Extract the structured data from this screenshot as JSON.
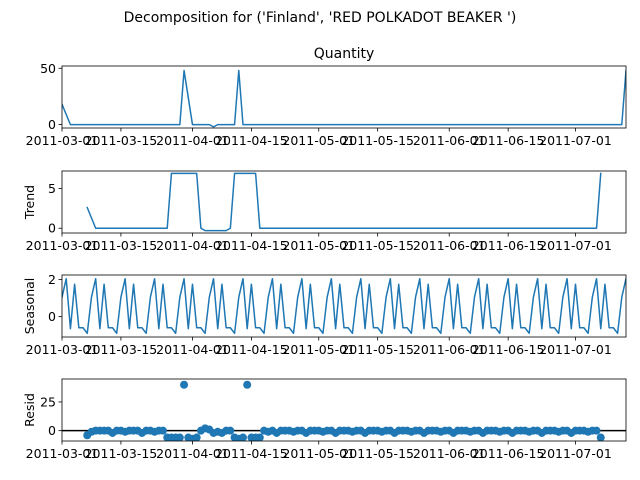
{
  "figure": {
    "suptitle": "Decomposition for ('Finland', 'RED POLKADOT BEAKER ')"
  },
  "chart_data": [
    {
      "type": "line",
      "panel": "observed",
      "title": "Quantity",
      "ylabel": "",
      "ylim": [
        -3,
        52
      ],
      "yticks": [
        0,
        50
      ],
      "xlim": [
        "2011-03-01",
        "2011-07-13"
      ],
      "xticks": [
        "2011-03-01",
        "2011-03-15",
        "2011-04-01",
        "2011-04-15",
        "2011-05-01",
        "2011-05-15",
        "2011-06-01",
        "2011-06-15",
        "2011-07-01"
      ],
      "series": [
        {
          "x": [
            "2011-03-01",
            "2011-03-03",
            "2011-03-29",
            "2011-03-30",
            "2011-04-01",
            "2011-04-02",
            "2011-04-03",
            "2011-04-04",
            "2011-04-05",
            "2011-04-06",
            "2011-04-07",
            "2011-04-08",
            "2011-04-09",
            "2011-04-10",
            "2011-04-11",
            "2011-04-12",
            "2011-04-13",
            "2011-07-12",
            "2011-07-13"
          ],
          "y": [
            18,
            0,
            0,
            48,
            0,
            0,
            0,
            0,
            0,
            -2,
            0,
            0,
            0,
            0,
            0,
            48,
            0,
            0,
            48
          ]
        }
      ]
    },
    {
      "type": "line",
      "panel": "trend",
      "title": "",
      "ylabel": "Trend",
      "ylim": [
        -0.6,
        7.2
      ],
      "yticks": [
        0,
        5
      ],
      "xlim": [
        "2011-03-01",
        "2011-07-13"
      ],
      "xticks": [
        "2011-03-01",
        "2011-03-15",
        "2011-04-01",
        "2011-04-15",
        "2011-05-01",
        "2011-05-15",
        "2011-06-01",
        "2011-06-15",
        "2011-07-01"
      ],
      "series": [
        {
          "x": [
            "2011-03-07",
            "2011-03-09",
            "2011-03-26",
            "2011-03-27",
            "2011-04-02",
            "2011-04-03",
            "2011-04-04",
            "2011-04-09",
            "2011-04-10",
            "2011-04-11",
            "2011-04-16",
            "2011-04-17",
            "2011-07-06",
            "2011-07-07"
          ],
          "y": [
            2.6,
            0,
            0,
            6.9,
            6.9,
            0,
            -0.3,
            -0.3,
            0,
            6.9,
            6.9,
            0,
            0,
            6.9
          ]
        }
      ]
    },
    {
      "type": "line",
      "panel": "seasonal",
      "title": "",
      "ylabel": "Seasonal",
      "ylim": [
        -1.1,
        2.25
      ],
      "yticks": [
        0,
        2
      ],
      "xlim": [
        "2011-03-01",
        "2011-07-13"
      ],
      "xticks": [
        "2011-03-01",
        "2011-03-15",
        "2011-04-01",
        "2011-04-15",
        "2011-05-01",
        "2011-05-15",
        "2011-06-01",
        "2011-06-15",
        "2011-07-01"
      ],
      "start": "2011-03-01",
      "period_days": 7,
      "pattern": [
        1.05,
        2.05,
        -0.65,
        1.75,
        -0.6,
        -0.6,
        -0.9
      ]
    },
    {
      "type": "scatter",
      "panel": "resid",
      "title": "",
      "ylabel": "Resid",
      "ylim": [
        -9,
        45
      ],
      "yticks": [
        0,
        25
      ],
      "zero_line": true,
      "xlim": [
        "2011-03-01",
        "2011-07-13"
      ],
      "xticks": [
        "2011-03-01",
        "2011-03-15",
        "2011-04-01",
        "2011-04-15",
        "2011-05-01",
        "2011-05-15",
        "2011-06-01",
        "2011-06-15",
        "2011-07-01"
      ],
      "points": [
        [
          "2011-03-07",
          -4
        ],
        [
          "2011-03-08",
          -1
        ],
        [
          "2011-03-09",
          0
        ],
        [
          "2011-03-10",
          0
        ],
        [
          "2011-03-11",
          0
        ],
        [
          "2011-03-12",
          0
        ],
        [
          "2011-03-13",
          -2
        ],
        [
          "2011-03-14",
          0
        ],
        [
          "2011-03-15",
          0
        ],
        [
          "2011-03-16",
          -1
        ],
        [
          "2011-03-17",
          0
        ],
        [
          "2011-03-18",
          0
        ],
        [
          "2011-03-19",
          0
        ],
        [
          "2011-03-20",
          -2
        ],
        [
          "2011-03-21",
          0
        ],
        [
          "2011-03-22",
          0
        ],
        [
          "2011-03-23",
          -1
        ],
        [
          "2011-03-24",
          0
        ],
        [
          "2011-03-25",
          0
        ],
        [
          "2011-03-26",
          -6
        ],
        [
          "2011-03-27",
          -6
        ],
        [
          "2011-03-28",
          -6
        ],
        [
          "2011-03-29",
          -6
        ],
        [
          "2011-03-30",
          40
        ],
        [
          "2011-03-31",
          -6
        ],
        [
          "2011-04-01",
          -7
        ],
        [
          "2011-04-02",
          -6
        ],
        [
          "2011-04-03",
          0
        ],
        [
          "2011-04-04",
          2
        ],
        [
          "2011-04-05",
          1
        ],
        [
          "2011-04-06",
          -2
        ],
        [
          "2011-04-07",
          -1
        ],
        [
          "2011-04-08",
          -2
        ],
        [
          "2011-04-09",
          0
        ],
        [
          "2011-04-10",
          0
        ],
        [
          "2011-04-11",
          -6
        ],
        [
          "2011-04-12",
          -7
        ],
        [
          "2011-04-13",
          -6
        ],
        [
          "2011-04-14",
          40
        ],
        [
          "2011-04-15",
          -6
        ],
        [
          "2011-04-16",
          -6
        ],
        [
          "2011-04-17",
          -6
        ],
        [
          "2011-04-18",
          0
        ],
        [
          "2011-04-19",
          -1
        ],
        [
          "2011-04-20",
          0
        ],
        [
          "2011-04-21",
          -2
        ],
        [
          "2011-04-22",
          0
        ],
        [
          "2011-04-23",
          0
        ],
        [
          "2011-04-24",
          0
        ],
        [
          "2011-04-25",
          -1
        ],
        [
          "2011-04-26",
          0
        ],
        [
          "2011-04-27",
          0
        ],
        [
          "2011-04-28",
          -2
        ],
        [
          "2011-04-29",
          0
        ],
        [
          "2011-04-30",
          0
        ],
        [
          "2011-05-01",
          0
        ],
        [
          "2011-05-02",
          -1
        ],
        [
          "2011-05-03",
          0
        ],
        [
          "2011-05-04",
          0
        ],
        [
          "2011-05-05",
          -2
        ],
        [
          "2011-05-06",
          0
        ],
        [
          "2011-05-07",
          0
        ],
        [
          "2011-05-08",
          0
        ],
        [
          "2011-05-09",
          -1
        ],
        [
          "2011-05-10",
          0
        ],
        [
          "2011-05-11",
          0
        ],
        [
          "2011-05-12",
          -2
        ],
        [
          "2011-05-13",
          0
        ],
        [
          "2011-05-14",
          0
        ],
        [
          "2011-05-15",
          0
        ],
        [
          "2011-05-16",
          -1
        ],
        [
          "2011-05-17",
          0
        ],
        [
          "2011-05-18",
          0
        ],
        [
          "2011-05-19",
          -2
        ],
        [
          "2011-05-20",
          0
        ],
        [
          "2011-05-21",
          0
        ],
        [
          "2011-05-22",
          0
        ],
        [
          "2011-05-23",
          -1
        ],
        [
          "2011-05-24",
          0
        ],
        [
          "2011-05-25",
          0
        ],
        [
          "2011-05-26",
          -2
        ],
        [
          "2011-05-27",
          0
        ],
        [
          "2011-05-28",
          0
        ],
        [
          "2011-05-29",
          0
        ],
        [
          "2011-05-30",
          -1
        ],
        [
          "2011-05-31",
          0
        ],
        [
          "2011-06-01",
          0
        ],
        [
          "2011-06-02",
          -2
        ],
        [
          "2011-06-03",
          0
        ],
        [
          "2011-06-04",
          0
        ],
        [
          "2011-06-05",
          0
        ],
        [
          "2011-06-06",
          -1
        ],
        [
          "2011-06-07",
          0
        ],
        [
          "2011-06-08",
          0
        ],
        [
          "2011-06-09",
          -2
        ],
        [
          "2011-06-10",
          0
        ],
        [
          "2011-06-11",
          0
        ],
        [
          "2011-06-12",
          0
        ],
        [
          "2011-06-13",
          -1
        ],
        [
          "2011-06-14",
          0
        ],
        [
          "2011-06-15",
          0
        ],
        [
          "2011-06-16",
          -2
        ],
        [
          "2011-06-17",
          0
        ],
        [
          "2011-06-18",
          0
        ],
        [
          "2011-06-19",
          0
        ],
        [
          "2011-06-20",
          -1
        ],
        [
          "2011-06-21",
          0
        ],
        [
          "2011-06-22",
          0
        ],
        [
          "2011-06-23",
          -2
        ],
        [
          "2011-06-24",
          0
        ],
        [
          "2011-06-25",
          0
        ],
        [
          "2011-06-26",
          0
        ],
        [
          "2011-06-27",
          -1
        ],
        [
          "2011-06-28",
          0
        ],
        [
          "2011-06-29",
          0
        ],
        [
          "2011-06-30",
          -2
        ],
        [
          "2011-07-01",
          0
        ],
        [
          "2011-07-02",
          0
        ],
        [
          "2011-07-03",
          0
        ],
        [
          "2011-07-04",
          -1
        ],
        [
          "2011-07-05",
          0
        ],
        [
          "2011-07-06",
          0
        ],
        [
          "2011-07-07",
          -6
        ]
      ]
    }
  ]
}
